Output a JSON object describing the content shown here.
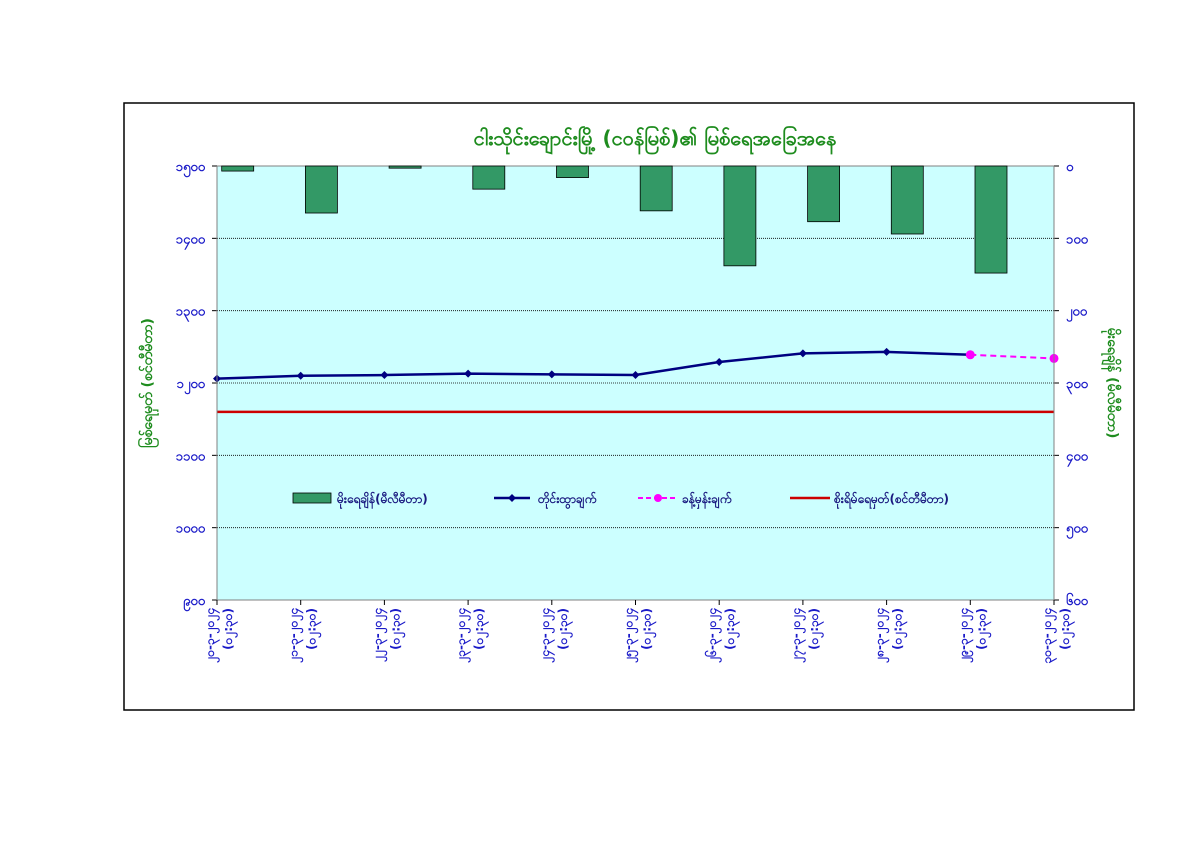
{
  "chart_data": {
    "type": "bar+line",
    "title": "ငါးသိုင်းချောင်းမြို့ (ငဝန်မြစ်)၏ မြစ်ရေအခြေအနေ",
    "ylabel_left": "မြစ်ရေမှတ် (စင်တီမီတာ)",
    "ylabel_right": "မိုးရေချိန် (မီလီမီတာ)",
    "left_axis": {
      "min": 900,
      "max": 1500,
      "ticks": [
        900,
        1000,
        1100,
        1200,
        1300,
        1400,
        1500
      ],
      "tick_labels": [
        "၉၀၀",
        "၁၀၀၀",
        "၁၁၀၀",
        "၁၂၀၀",
        "၁၃၀၀",
        "၁၄၀၀",
        "၁၅၀၀"
      ]
    },
    "right_axis": {
      "min": 0,
      "max": 600,
      "inverted": true,
      "ticks": [
        0,
        100,
        200,
        300,
        400,
        500,
        600
      ],
      "tick_labels": [
        "၀",
        "၁၀၀",
        "၂၀၀",
        "၃၀၀",
        "၄၀၀",
        "၅၀၀",
        "၆၀၀"
      ]
    },
    "categories": [
      "၂၀-၃-၂၀၂၄ (၀၂:၃၀)",
      "၂၁-၃-၂၀၂၄ (၀၂:၃၀)",
      "၂၂-၃-၂၀၂၄ (၀၂:၃၀)",
      "၂၃-၃-၂၀၂၄ (၀၂:၃၀)",
      "၂၄-၃-၂၀၂၄ (၀၂:၃၀)",
      "၂၅-၃-၂၀၂၄ (၀၂:၃၀)",
      "၂၆-၃-၂၀၂၄ (၀၂:၃၀)",
      "၂၇-၃-၂၀၂၄ (၀၂:၃၀)",
      "၂၈-၃-၂၀၂၄ (၀၂:၃၀)",
      "၂၉-၃-၂၀၂၄ (၀၂:၃၀)",
      "၃၀-၃-၂၀၂၄ (၀၂:၃၀)"
    ],
    "series": [
      {
        "name": "မိုးရေချိန်(မီလီမီတာ)",
        "type": "bar",
        "axis": "right",
        "color": "#339966",
        "values": [
          7,
          65,
          3,
          32,
          16,
          62,
          138,
          77,
          94,
          148,
          null
        ]
      },
      {
        "name": "တိုင်းထွာချက်",
        "type": "line",
        "axis": "left",
        "color": "#000080",
        "values": [
          1206,
          1210,
          1211,
          1213,
          1212,
          1211,
          1229,
          1241,
          1243,
          1239,
          null
        ]
      },
      {
        "name": "ခန့်မှန်းချက်",
        "type": "line-dashed",
        "axis": "left",
        "color": "#ff00ff",
        "values": [
          null,
          null,
          null,
          null,
          null,
          null,
          null,
          null,
          null,
          1239,
          1234
        ]
      },
      {
        "name": "စိုးရိမ်ရေမှတ်(စင်တီမီတာ)",
        "type": "hline",
        "axis": "left",
        "color": "#cc0000",
        "value": 1160
      }
    ],
    "grid": true,
    "legend_position": "center-left inside plot"
  },
  "colors": {
    "plot_background": "#ccffff",
    "tick_text": "#1a1ac8",
    "title_text": "#1e8c1e"
  }
}
